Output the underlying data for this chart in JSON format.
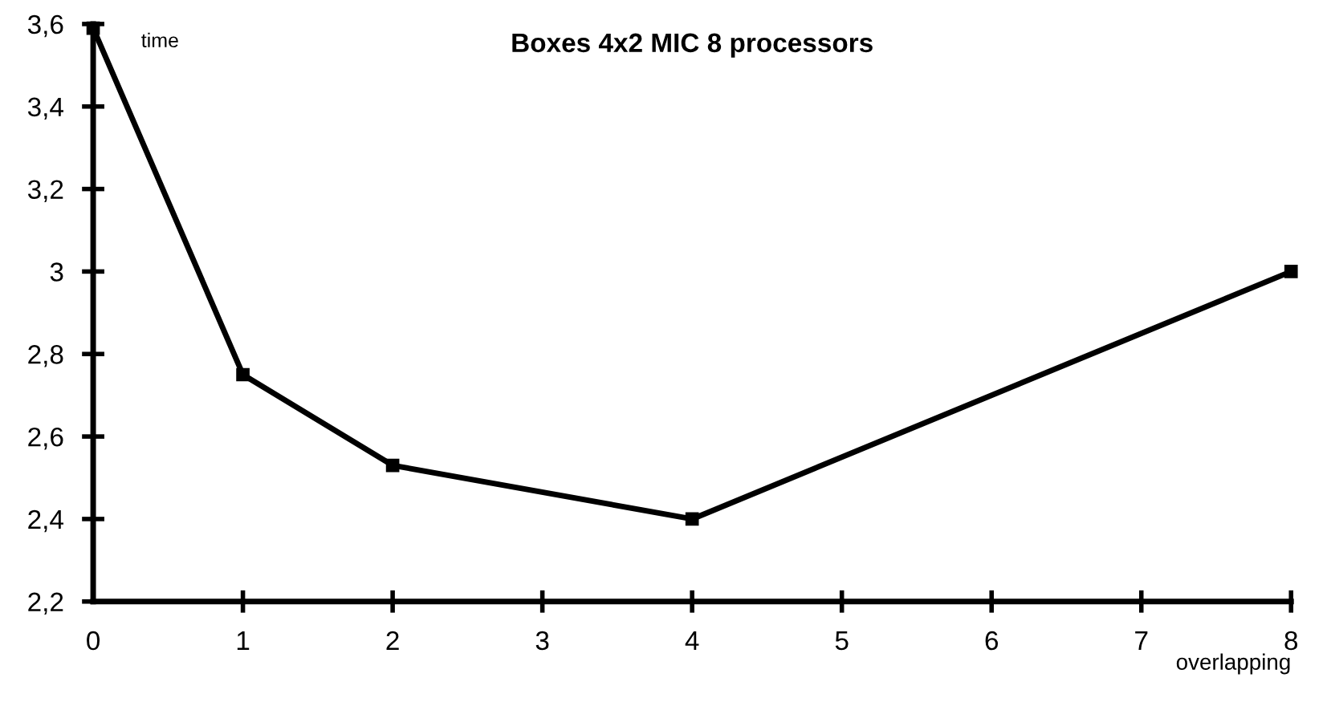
{
  "chart_data": {
    "type": "line",
    "title": "Boxes 4x2 MIC 8 processors",
    "xlabel": "overlapping",
    "ylabel": "time",
    "x": [
      0,
      1,
      2,
      4,
      8
    ],
    "series": [
      {
        "color": "#000000",
        "values": [
          3.59,
          2.75,
          2.53,
          2.4,
          3.0
        ]
      }
    ],
    "marker": "square",
    "line_style": "solid",
    "grid": false,
    "legend": false,
    "xlim": [
      0,
      8
    ],
    "xticks": [
      0,
      1,
      2,
      3,
      4,
      5,
      6,
      7,
      8
    ],
    "ylim": [
      2.2,
      3.6
    ],
    "yticks": [
      {
        "value": 2.2,
        "label": "2,2"
      },
      {
        "value": 2.4,
        "label": "2,4"
      },
      {
        "value": 2.6,
        "label": "2,6"
      },
      {
        "value": 2.8,
        "label": "2,8"
      },
      {
        "value": 3,
        "label": "3"
      },
      {
        "value": 3.2,
        "label": "3,2"
      },
      {
        "value": 3.4,
        "label": "3,4"
      },
      {
        "value": 3.6,
        "label": "3,6"
      }
    ]
  }
}
